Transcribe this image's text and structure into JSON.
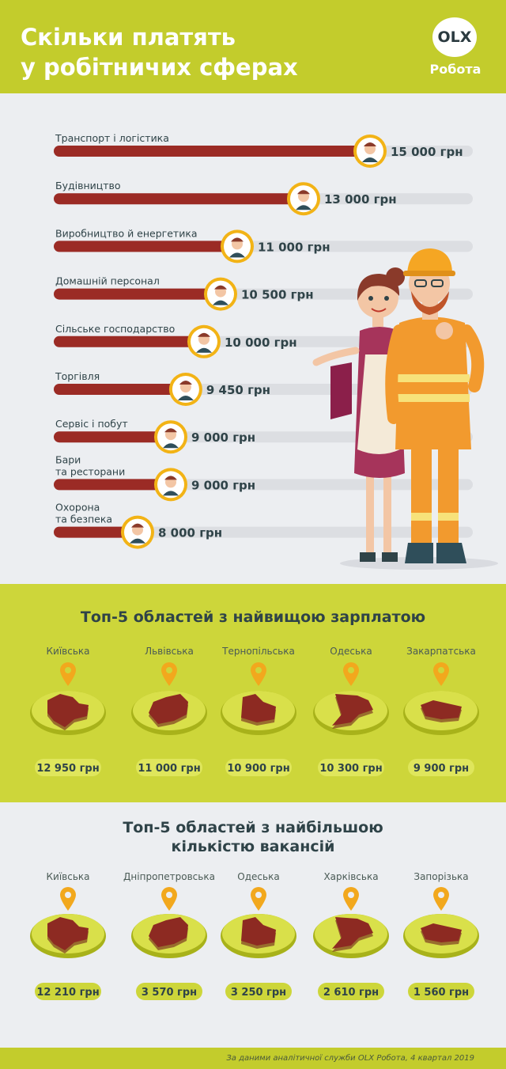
{
  "header": {
    "title_line1": "Скільки платять",
    "title_line2": "у робітничих сферах",
    "logo_text": "OLX",
    "logo_sub": "Робота"
  },
  "chart_data": [
    {
      "type": "bar",
      "categories": [
        "Транспорт і логістика",
        "Будівництво",
        "Виробництво й енергетика",
        "Домашній персонал",
        "Сільське господарство",
        "Торгівля",
        "Сервіс і побут",
        "Бари та ресторани",
        "Охорона та безпека"
      ],
      "values": [
        15000,
        13000,
        11000,
        10500,
        10000,
        9450,
        9000,
        9000,
        8000
      ],
      "value_labels": [
        "15 000 грн",
        "13 000 грн",
        "11 000 грн",
        "10 500 грн",
        "10 000 грн",
        "9 450 грн",
        "9 000 грн",
        "9 000 грн",
        "8 000 грн"
      ],
      "title": "",
      "xlabel": "",
      "ylabel": "",
      "colors": {
        "bar": "#9b2b25",
        "track": "#dcdee2",
        "ring": "#f2b316"
      }
    },
    {
      "type": "bar",
      "title": "Топ-5 областей з найвищою зарплатою",
      "categories": [
        "Київська",
        "Львівська",
        "Тернопільська",
        "Одеська",
        "Закарпатська"
      ],
      "values": [
        12950,
        11000,
        10900,
        10300,
        9900
      ],
      "value_labels": [
        "12 950 грн",
        "11 000 грн",
        "10 900 грн",
        "10 300 грн",
        "9 900 грн"
      ]
    },
    {
      "type": "bar",
      "title": "Топ-5 областей з найбільшою кількістю вакансій",
      "categories": [
        "Київська",
        "Дніпропетровська",
        "Одеська",
        "Харківська",
        "Запорізька"
      ],
      "values": [
        12210,
        3570,
        3250,
        2610,
        1560
      ],
      "value_labels": [
        "12 210 грн",
        "3 570 грн",
        "3 250 грн",
        "2 610 грн",
        "1 560 грн"
      ]
    }
  ],
  "labels": {
    "bar_lines": [
      [
        "Транспорт і логістика"
      ],
      [
        "Будівництво"
      ],
      [
        "Виробництво й енергетика"
      ],
      [
        "Домашній персонал"
      ],
      [
        "Сільське господарство"
      ],
      [
        "Торгівля"
      ],
      [
        "Сервіс і побут"
      ],
      [
        "Бари",
        "та ресторани"
      ],
      [
        "Охорона",
        "та безпека"
      ]
    ],
    "sec3_title_line1": "Топ-5 областей з найбільшою",
    "sec3_title_line2": "кількістю вакансій"
  },
  "footer": "За даними аналітичної служби OLX Робота, 4 квартал 2019",
  "icons": [
    "worker-icon",
    "location-pin-icon",
    "region-map-icon"
  ],
  "colors": {
    "lime": "#c3cc2c",
    "dark_red": "#9b2b25",
    "pin": "#f2a81d",
    "text_dark": "#2f4348"
  }
}
